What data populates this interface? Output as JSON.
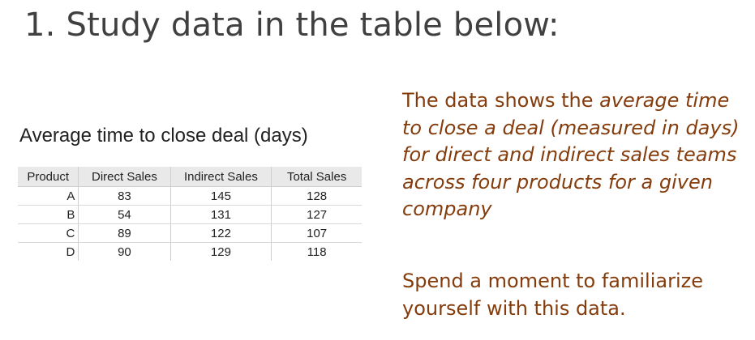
{
  "slide": {
    "title": "1. Study data in the table below:"
  },
  "table": {
    "caption": "Average time to close deal (days)",
    "headers": [
      "Product",
      "Direct Sales",
      "Indirect Sales",
      "Total Sales"
    ],
    "rows": [
      [
        "A",
        "83",
        "145",
        "128"
      ],
      [
        "B",
        "54",
        "131",
        "127"
      ],
      [
        "C",
        "89",
        "122",
        "107"
      ],
      [
        "D",
        "90",
        "129",
        "118"
      ]
    ]
  },
  "description": {
    "intro": "The data shows the ",
    "emphasis": "average time to close a deal (measured in days) for direct and indirect sales teams across four products for a given company"
  },
  "note": {
    "text": "Spend a moment to familiarize yourself with this data."
  },
  "colors": {
    "title": "#404040",
    "body_text": "#843c0c",
    "table_header_bg": "#e9e9e9"
  }
}
